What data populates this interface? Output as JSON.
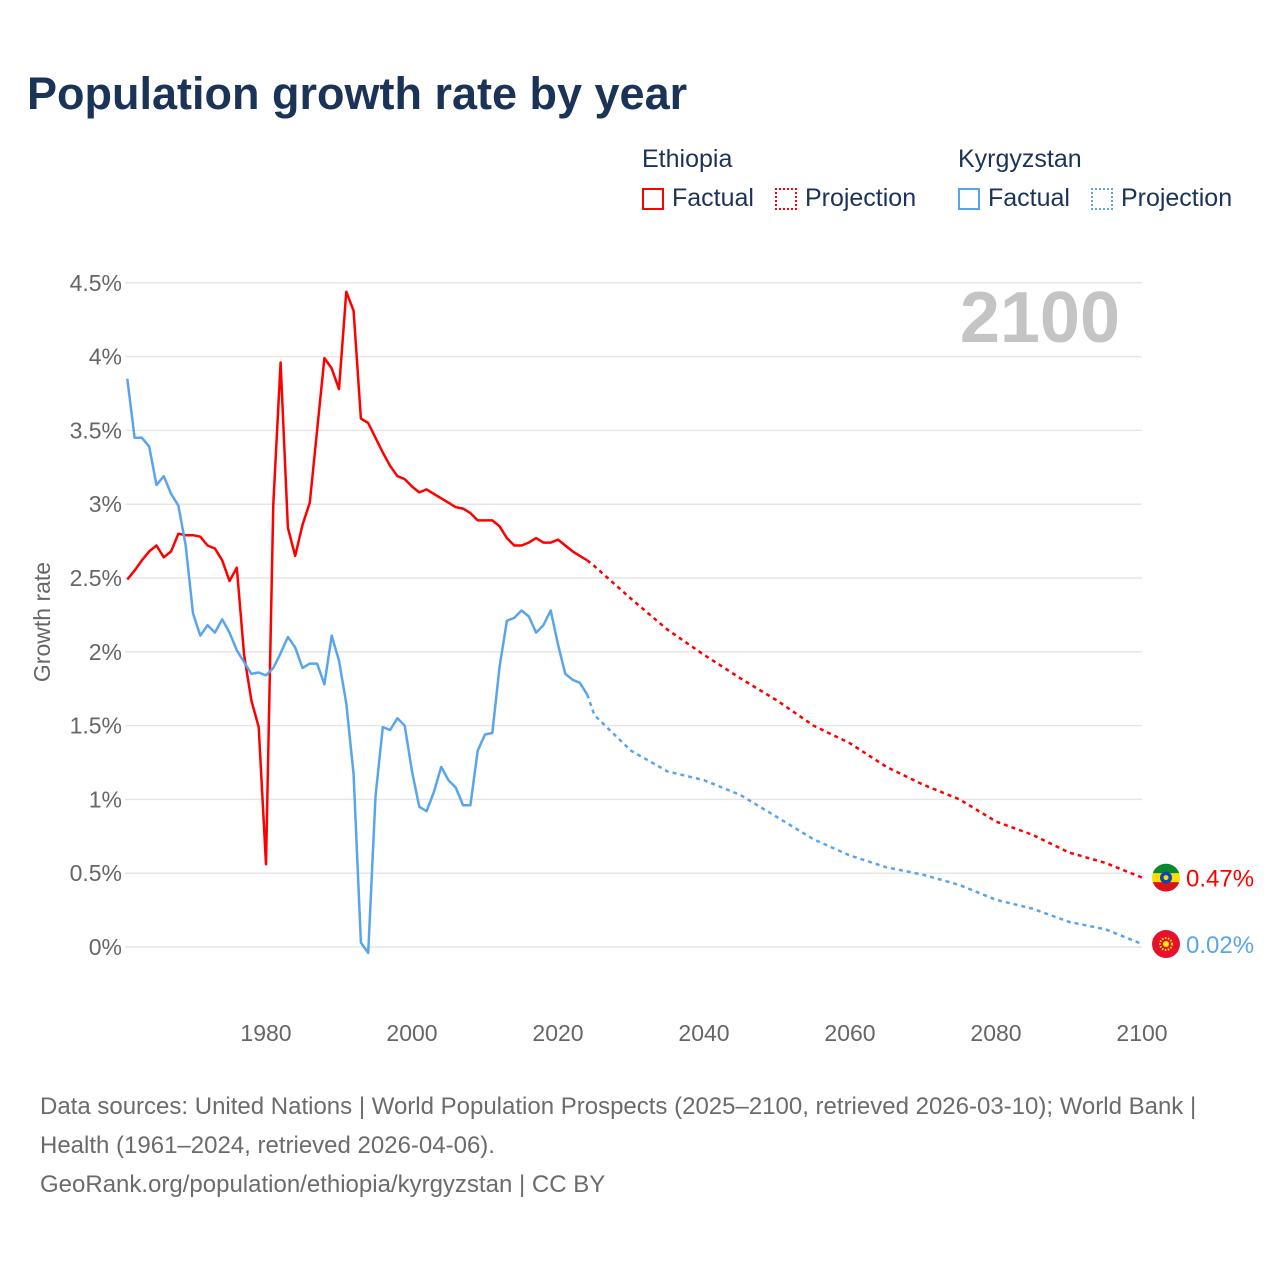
{
  "title": "Population growth rate by year",
  "legend": {
    "groups": [
      {
        "name": "Ethiopia",
        "color": "#ff0000",
        "factual_label": "Factual",
        "projection_label": "Projection"
      },
      {
        "name": "Kyrgyzstan",
        "color": "#5aa5ea",
        "factual_label": "Factual",
        "projection_label": "Projection"
      }
    ]
  },
  "year_badge": "2100",
  "footer": {
    "sources": "Data sources: United Nations | World Population Prospects (2025–2100, retrieved 2026-03-10); World Bank | Health (1961–2024, retrieved 2026-04-06).",
    "attribution": "GeoRank.org/population/ethiopia/kyrgyzstan | CC BY"
  },
  "chart_data": {
    "type": "line",
    "title": "Population growth rate by year",
    "xlabel": "",
    "ylabel": "Growth rate",
    "xlim": [
      1961,
      2100
    ],
    "ylim": [
      -0.35,
      4.6
    ],
    "x_ticks": [
      1980,
      2000,
      2020,
      2040,
      2060,
      2080,
      2100
    ],
    "x_tick_labels": [
      "1980",
      "2000",
      "2020",
      "2040",
      "2060",
      "2080",
      "2100"
    ],
    "y_ticks": [
      0,
      0.5,
      1,
      1.5,
      2,
      2.5,
      3,
      3.5,
      4,
      4.5
    ],
    "y_tick_labels": [
      "0%",
      "0.5%",
      "1%",
      "1.5%",
      "2%",
      "2.5%",
      "3%",
      "3.5%",
      "4%",
      "4.5%"
    ],
    "grid": true,
    "legend_position": "top-right",
    "series": [
      {
        "name": "Ethiopia",
        "color": "#ff0000",
        "end_label": "0.47%",
        "factual": {
          "x_start": 1961,
          "values": [
            2.49,
            2.55,
            2.62,
            2.68,
            2.72,
            2.64,
            2.68,
            2.8,
            2.79,
            2.79,
            2.78,
            2.72,
            2.7,
            2.62,
            2.48,
            2.57,
            1.98,
            1.67,
            1.49,
            0.56,
            3.0,
            3.96,
            2.84,
            2.65,
            2.86,
            3.01,
            3.5,
            3.99,
            3.92,
            3.78,
            4.44,
            4.31,
            3.58,
            3.55,
            3.45,
            3.35,
            3.26,
            3.19,
            3.17,
            3.12,
            3.08,
            3.1,
            3.07,
            3.04,
            3.01,
            2.98,
            2.97,
            2.94,
            2.89,
            2.89,
            2.89,
            2.85,
            2.77,
            2.72,
            2.72,
            2.74,
            2.77,
            2.74,
            2.74,
            2.76,
            2.72,
            2.68,
            2.65,
            2.62
          ]
        },
        "projection": {
          "x": [
            2024,
            2025,
            2030,
            2035,
            2040,
            2045,
            2050,
            2055,
            2060,
            2065,
            2070,
            2075,
            2080,
            2085,
            2090,
            2095,
            2100
          ],
          "values": [
            2.62,
            2.58,
            2.36,
            2.15,
            1.98,
            1.82,
            1.67,
            1.5,
            1.38,
            1.22,
            1.1,
            1.0,
            0.85,
            0.76,
            0.64,
            0.57,
            0.47
          ]
        }
      },
      {
        "name": "Kyrgyzstan",
        "color": "#5aa5ea",
        "end_label": "0.02%",
        "factual": {
          "x_start": 1961,
          "values": [
            3.85,
            3.45,
            3.45,
            3.39,
            3.13,
            3.19,
            3.07,
            2.99,
            2.72,
            2.26,
            2.11,
            2.18,
            2.13,
            2.22,
            2.13,
            2.01,
            1.93,
            1.85,
            1.86,
            1.84,
            1.89,
            1.99,
            2.1,
            2.03,
            1.89,
            1.92,
            1.92,
            1.78,
            2.11,
            1.94,
            1.65,
            1.17,
            0.03,
            -0.04,
            1.02,
            1.49,
            1.47,
            1.55,
            1.5,
            1.19,
            0.95,
            0.92,
            1.05,
            1.22,
            1.13,
            1.08,
            0.96,
            0.96,
            1.33,
            1.44,
            1.45,
            1.9,
            2.21,
            2.23,
            2.28,
            2.24,
            2.13,
            2.18,
            2.28,
            2.05,
            1.85,
            1.81,
            1.79,
            1.71
          ]
        },
        "projection": {
          "x": [
            2024,
            2025,
            2030,
            2035,
            2040,
            2045,
            2050,
            2055,
            2060,
            2065,
            2070,
            2075,
            2080,
            2085,
            2090,
            2095,
            2100
          ],
          "values": [
            1.71,
            1.57,
            1.33,
            1.19,
            1.13,
            1.03,
            0.88,
            0.73,
            0.62,
            0.54,
            0.49,
            0.42,
            0.32,
            0.26,
            0.17,
            0.12,
            0.02
          ]
        }
      }
    ]
  }
}
